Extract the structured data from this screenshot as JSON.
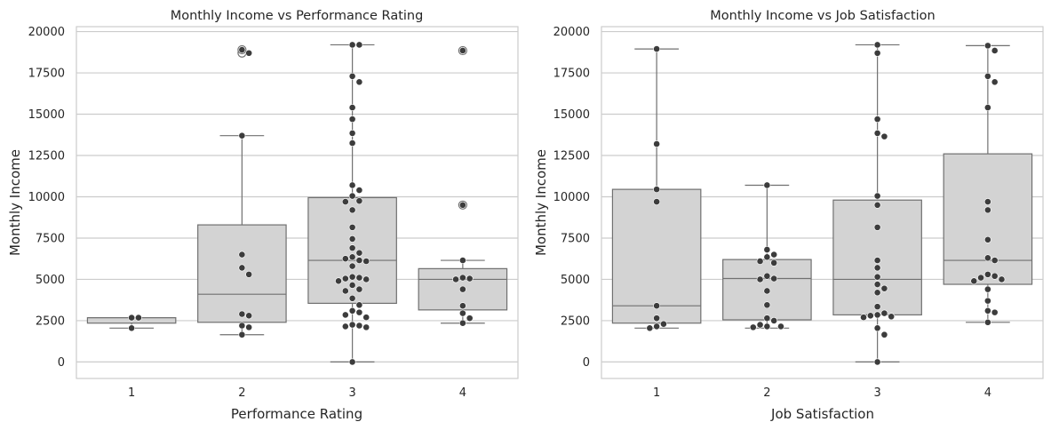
{
  "colors": {
    "box_fill": "#d3d3d3",
    "box_edge": "#707070",
    "point": "#3c3c3c",
    "grid": "#cccccc",
    "frame": "#cccccc"
  },
  "chart_data": [
    {
      "type": "box",
      "title": "Monthly Income vs Performance Rating",
      "xlabel": "Performance Rating",
      "ylabel": "Monthly Income",
      "ylim": [
        -1000,
        20300
      ],
      "yticks": [
        0,
        2500,
        5000,
        7500,
        10000,
        12500,
        15000,
        17500,
        20000
      ],
      "grid": "horizontal",
      "categories": [
        "1",
        "2",
        "3",
        "4"
      ],
      "boxes": [
        {
          "q1": 2350,
          "median": 2680,
          "q3": 2680,
          "whisker_low": 2050,
          "whisker_high": 2680,
          "outliers": []
        },
        {
          "q1": 2400,
          "median": 4100,
          "q3": 8300,
          "whisker_low": 1650,
          "whisker_high": 13700,
          "outliers": [
            18900,
            18700
          ]
        },
        {
          "q1": 3550,
          "median": 6150,
          "q3": 9950,
          "whisker_low": 0,
          "whisker_high": 19200,
          "outliers": []
        },
        {
          "q1": 3150,
          "median": 5000,
          "q3": 5650,
          "whisker_low": 2350,
          "whisker_high": 6150,
          "outliers": [
            18850,
            9500
          ]
        }
      ],
      "points": [
        [
          2680,
          2680,
          2050
        ],
        [
          18900,
          18700,
          13700,
          6500,
          5700,
          5300,
          2900,
          2800,
          2200,
          2100,
          1650
        ],
        [
          19200,
          19200,
          17300,
          16950,
          15400,
          14700,
          13850,
          13250,
          10700,
          10400,
          10050,
          9700,
          9750,
          9200,
          8150,
          7450,
          6900,
          6600,
          6350,
          6250,
          6150,
          6100,
          5800,
          5150,
          5100,
          5050,
          5000,
          4900,
          4650,
          4400,
          4300,
          3850,
          3450,
          3100,
          3000,
          2850,
          2700,
          2250,
          2200,
          2150,
          2100,
          0
        ],
        [
          18850,
          9500,
          6150,
          5100,
          5000,
          5050,
          4400,
          3400,
          2950,
          2650,
          2350
        ]
      ]
    },
    {
      "type": "box",
      "title": "Monthly Income vs Job Satisfaction",
      "xlabel": "Job Satisfaction",
      "ylabel": "Monthly Income",
      "ylim": [
        -1000,
        20300
      ],
      "yticks": [
        0,
        2500,
        5000,
        7500,
        10000,
        12500,
        15000,
        17500,
        20000
      ],
      "grid": "horizontal",
      "categories": [
        "1",
        "2",
        "3",
        "4"
      ],
      "boxes": [
        {
          "q1": 2350,
          "median": 3400,
          "q3": 10450,
          "whisker_low": 2050,
          "whisker_high": 18950,
          "outliers": []
        },
        {
          "q1": 2550,
          "median": 5050,
          "q3": 6200,
          "whisker_low": 2050,
          "whisker_high": 10700,
          "outliers": []
        },
        {
          "q1": 2850,
          "median": 5000,
          "q3": 9800,
          "whisker_low": 0,
          "whisker_high": 19200,
          "outliers": []
        },
        {
          "q1": 4700,
          "median": 6150,
          "q3": 12600,
          "whisker_low": 2400,
          "whisker_high": 19150,
          "outliers": []
        }
      ],
      "points": [
        [
          18950,
          13200,
          10450,
          9700,
          3400,
          2650,
          2300,
          2150,
          2050
        ],
        [
          10700,
          6800,
          6500,
          6350,
          6100,
          6000,
          5200,
          5050,
          5000,
          4300,
          3450,
          2650,
          2500,
          2250,
          2150,
          2150,
          2100
        ],
        [
          19200,
          18700,
          14700,
          13850,
          13650,
          10050,
          9500,
          8150,
          6150,
          5700,
          5150,
          4700,
          4450,
          4200,
          3350,
          2950,
          2850,
          2800,
          2750,
          2700,
          2050,
          1650,
          0
        ],
        [
          19150,
          18850,
          17300,
          16950,
          15400,
          9700,
          9200,
          7400,
          6300,
          6150,
          5300,
          5200,
          5100,
          5000,
          4900,
          4400,
          3700,
          3100,
          3000,
          2400
        ]
      ]
    }
  ]
}
